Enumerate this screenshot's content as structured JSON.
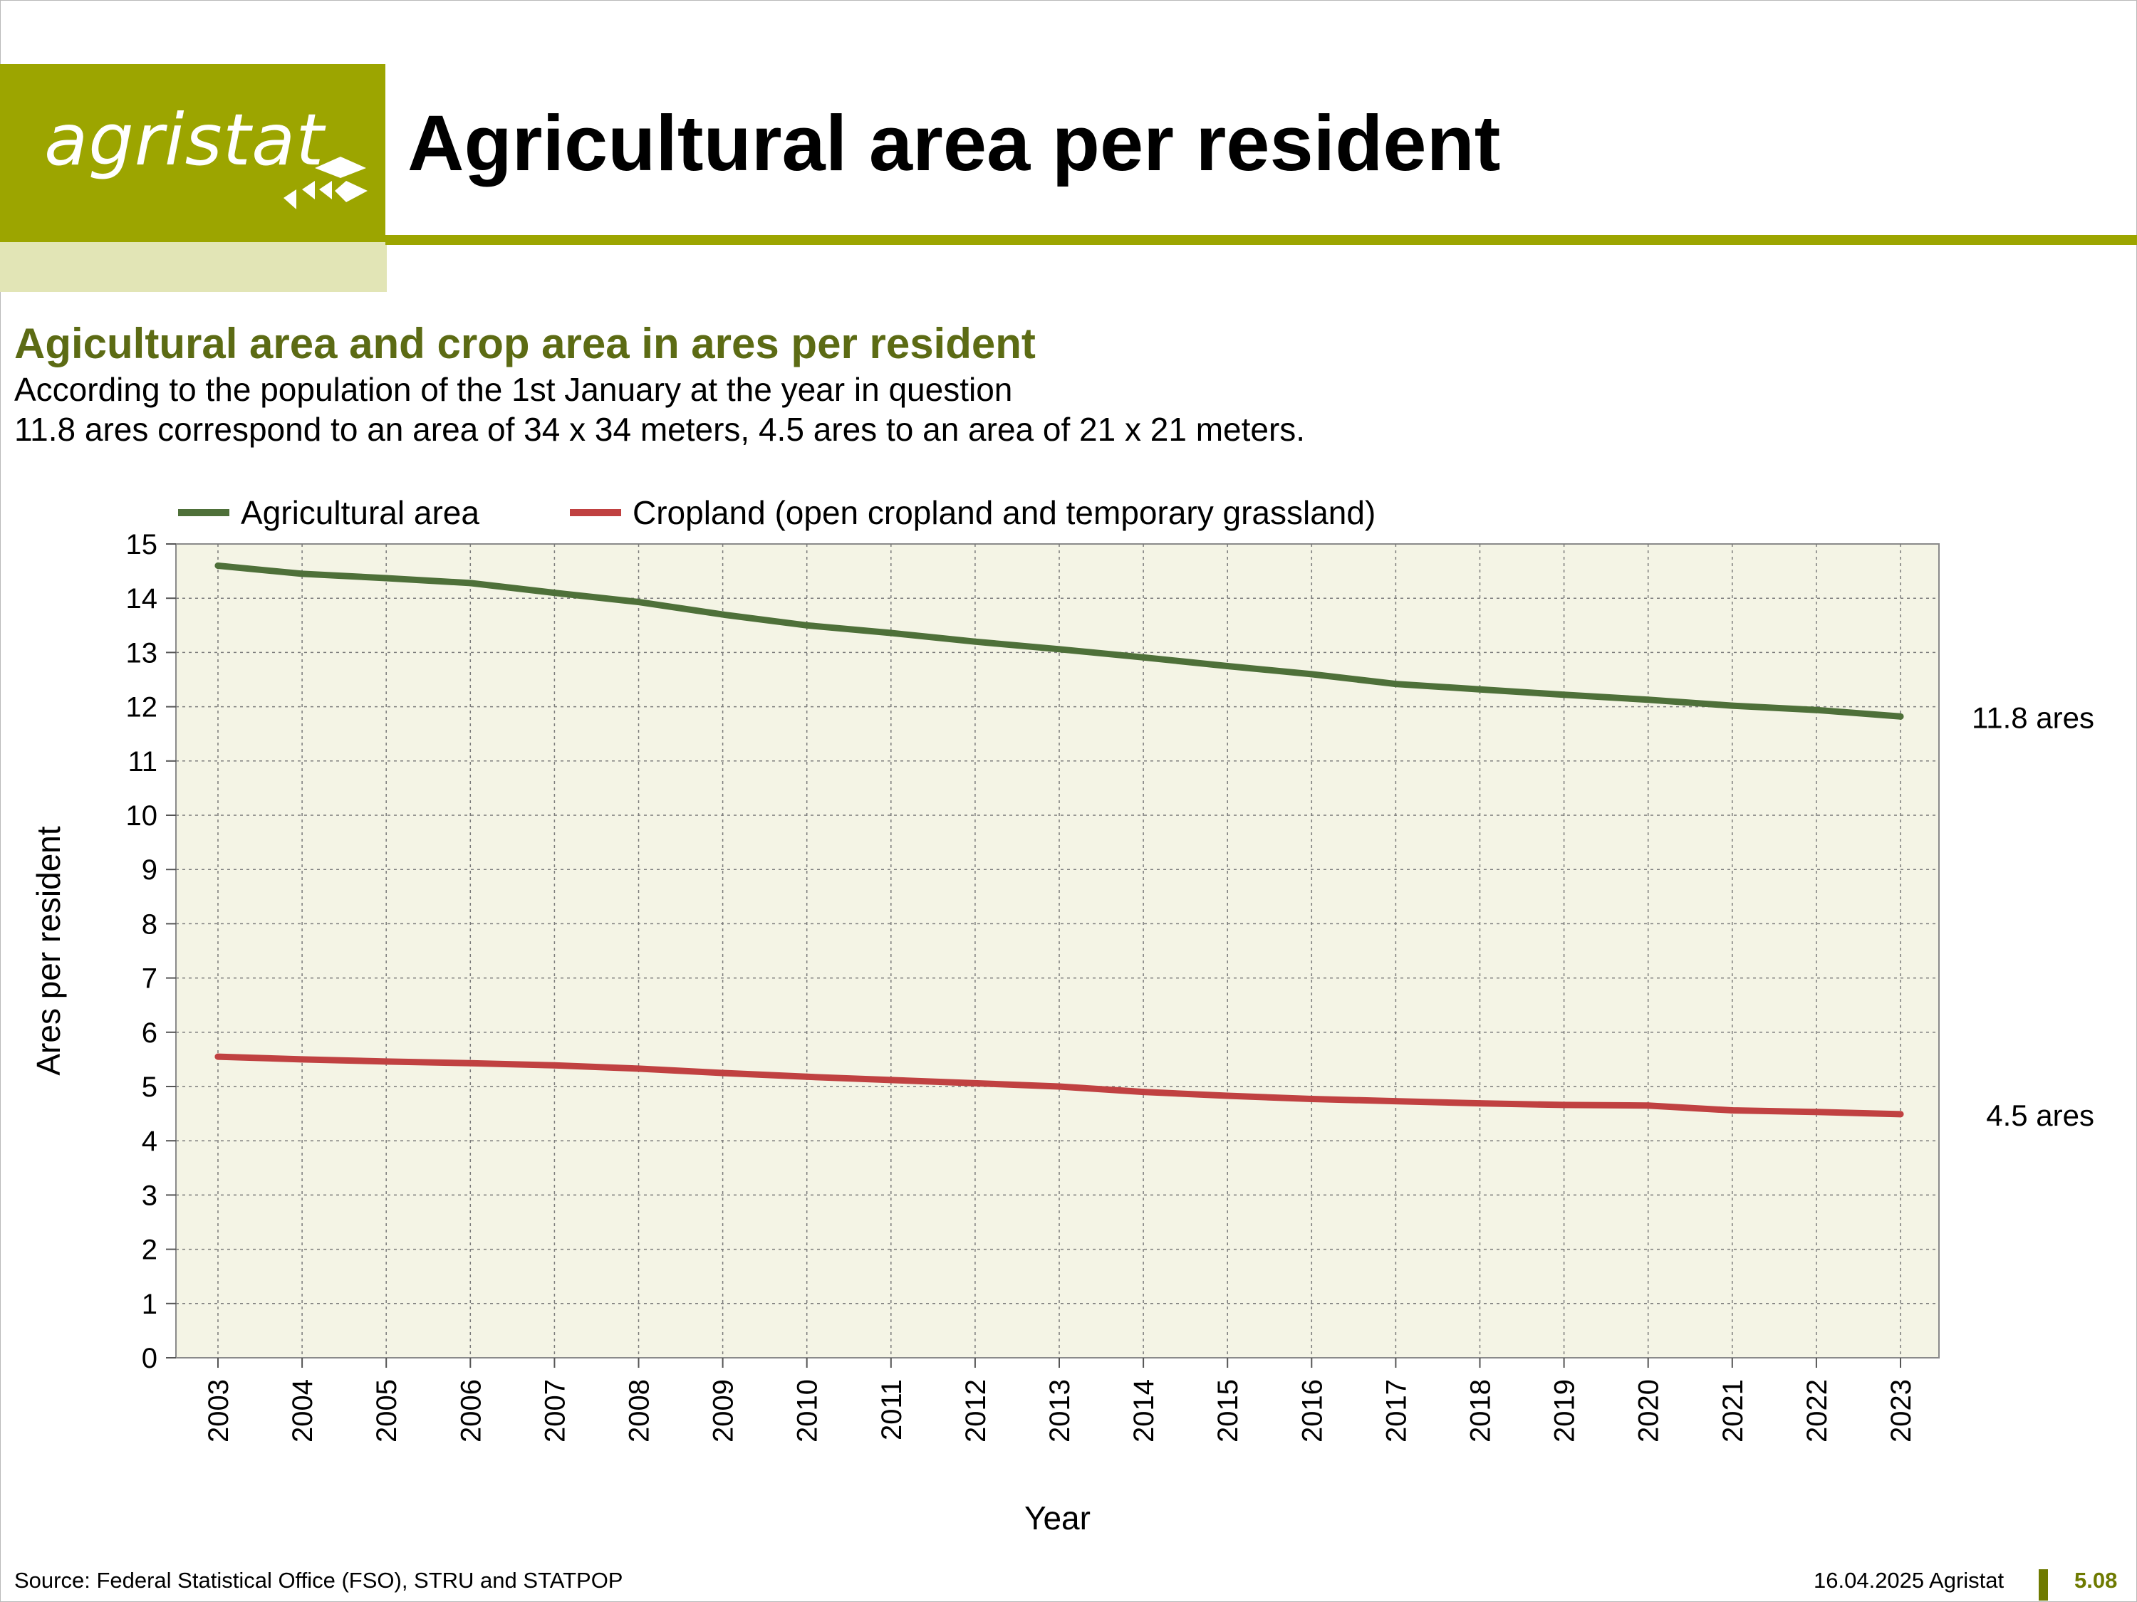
{
  "header": {
    "logo_text": "agristat",
    "title": "Agricultural area per resident"
  },
  "subtitle": "Agicultural area and crop area in ares per resident",
  "description": [
    "According to the population of the 1st January at the year in question",
    "11.8 ares correspond to an area of 34 x 34 meters, 4.5 ares to an area of 21 x 21 meters."
  ],
  "colors": {
    "brand": "#9ca500",
    "brand_light": "#e2e5b6",
    "plot_background": "#f4f4e5",
    "agricultural_area": "#4e7039",
    "cropland": "#c04141",
    "subtitle": "#5c6b14"
  },
  "chart_data": {
    "type": "line",
    "x": [
      2003,
      2004,
      2005,
      2006,
      2007,
      2008,
      2009,
      2010,
      2011,
      2012,
      2013,
      2014,
      2015,
      2016,
      2017,
      2018,
      2019,
      2020,
      2021,
      2022,
      2023
    ],
    "series": [
      {
        "name": "Agricultural area",
        "values": [
          14.6,
          14.45,
          14.37,
          14.28,
          14.1,
          13.93,
          13.7,
          13.5,
          13.36,
          13.2,
          13.06,
          12.91,
          12.75,
          12.6,
          12.42,
          12.32,
          12.22,
          12.13,
          12.02,
          11.94,
          11.82
        ],
        "end_label": "11.8 ares"
      },
      {
        "name": "Cropland (open cropland and temporary grassland)",
        "values": [
          5.55,
          5.5,
          5.46,
          5.43,
          5.39,
          5.33,
          5.25,
          5.18,
          5.12,
          5.06,
          5.0,
          4.9,
          4.83,
          4.77,
          4.73,
          4.69,
          4.66,
          4.65,
          4.56,
          4.53,
          4.49
        ],
        "end_label": "4.5 ares"
      }
    ],
    "xlabel": "Year",
    "ylabel": "Ares per resident",
    "ylim": [
      0,
      15
    ],
    "yticks": [
      0,
      1,
      2,
      3,
      4,
      5,
      6,
      7,
      8,
      9,
      10,
      11,
      12,
      13,
      14,
      15
    ],
    "grid": true,
    "legend": "top"
  },
  "footer": {
    "source": "Source: Federal Statistical Office (FSO), STRU and STATPOP",
    "date": "16.04.2025 Agristat",
    "page": "5.08"
  }
}
